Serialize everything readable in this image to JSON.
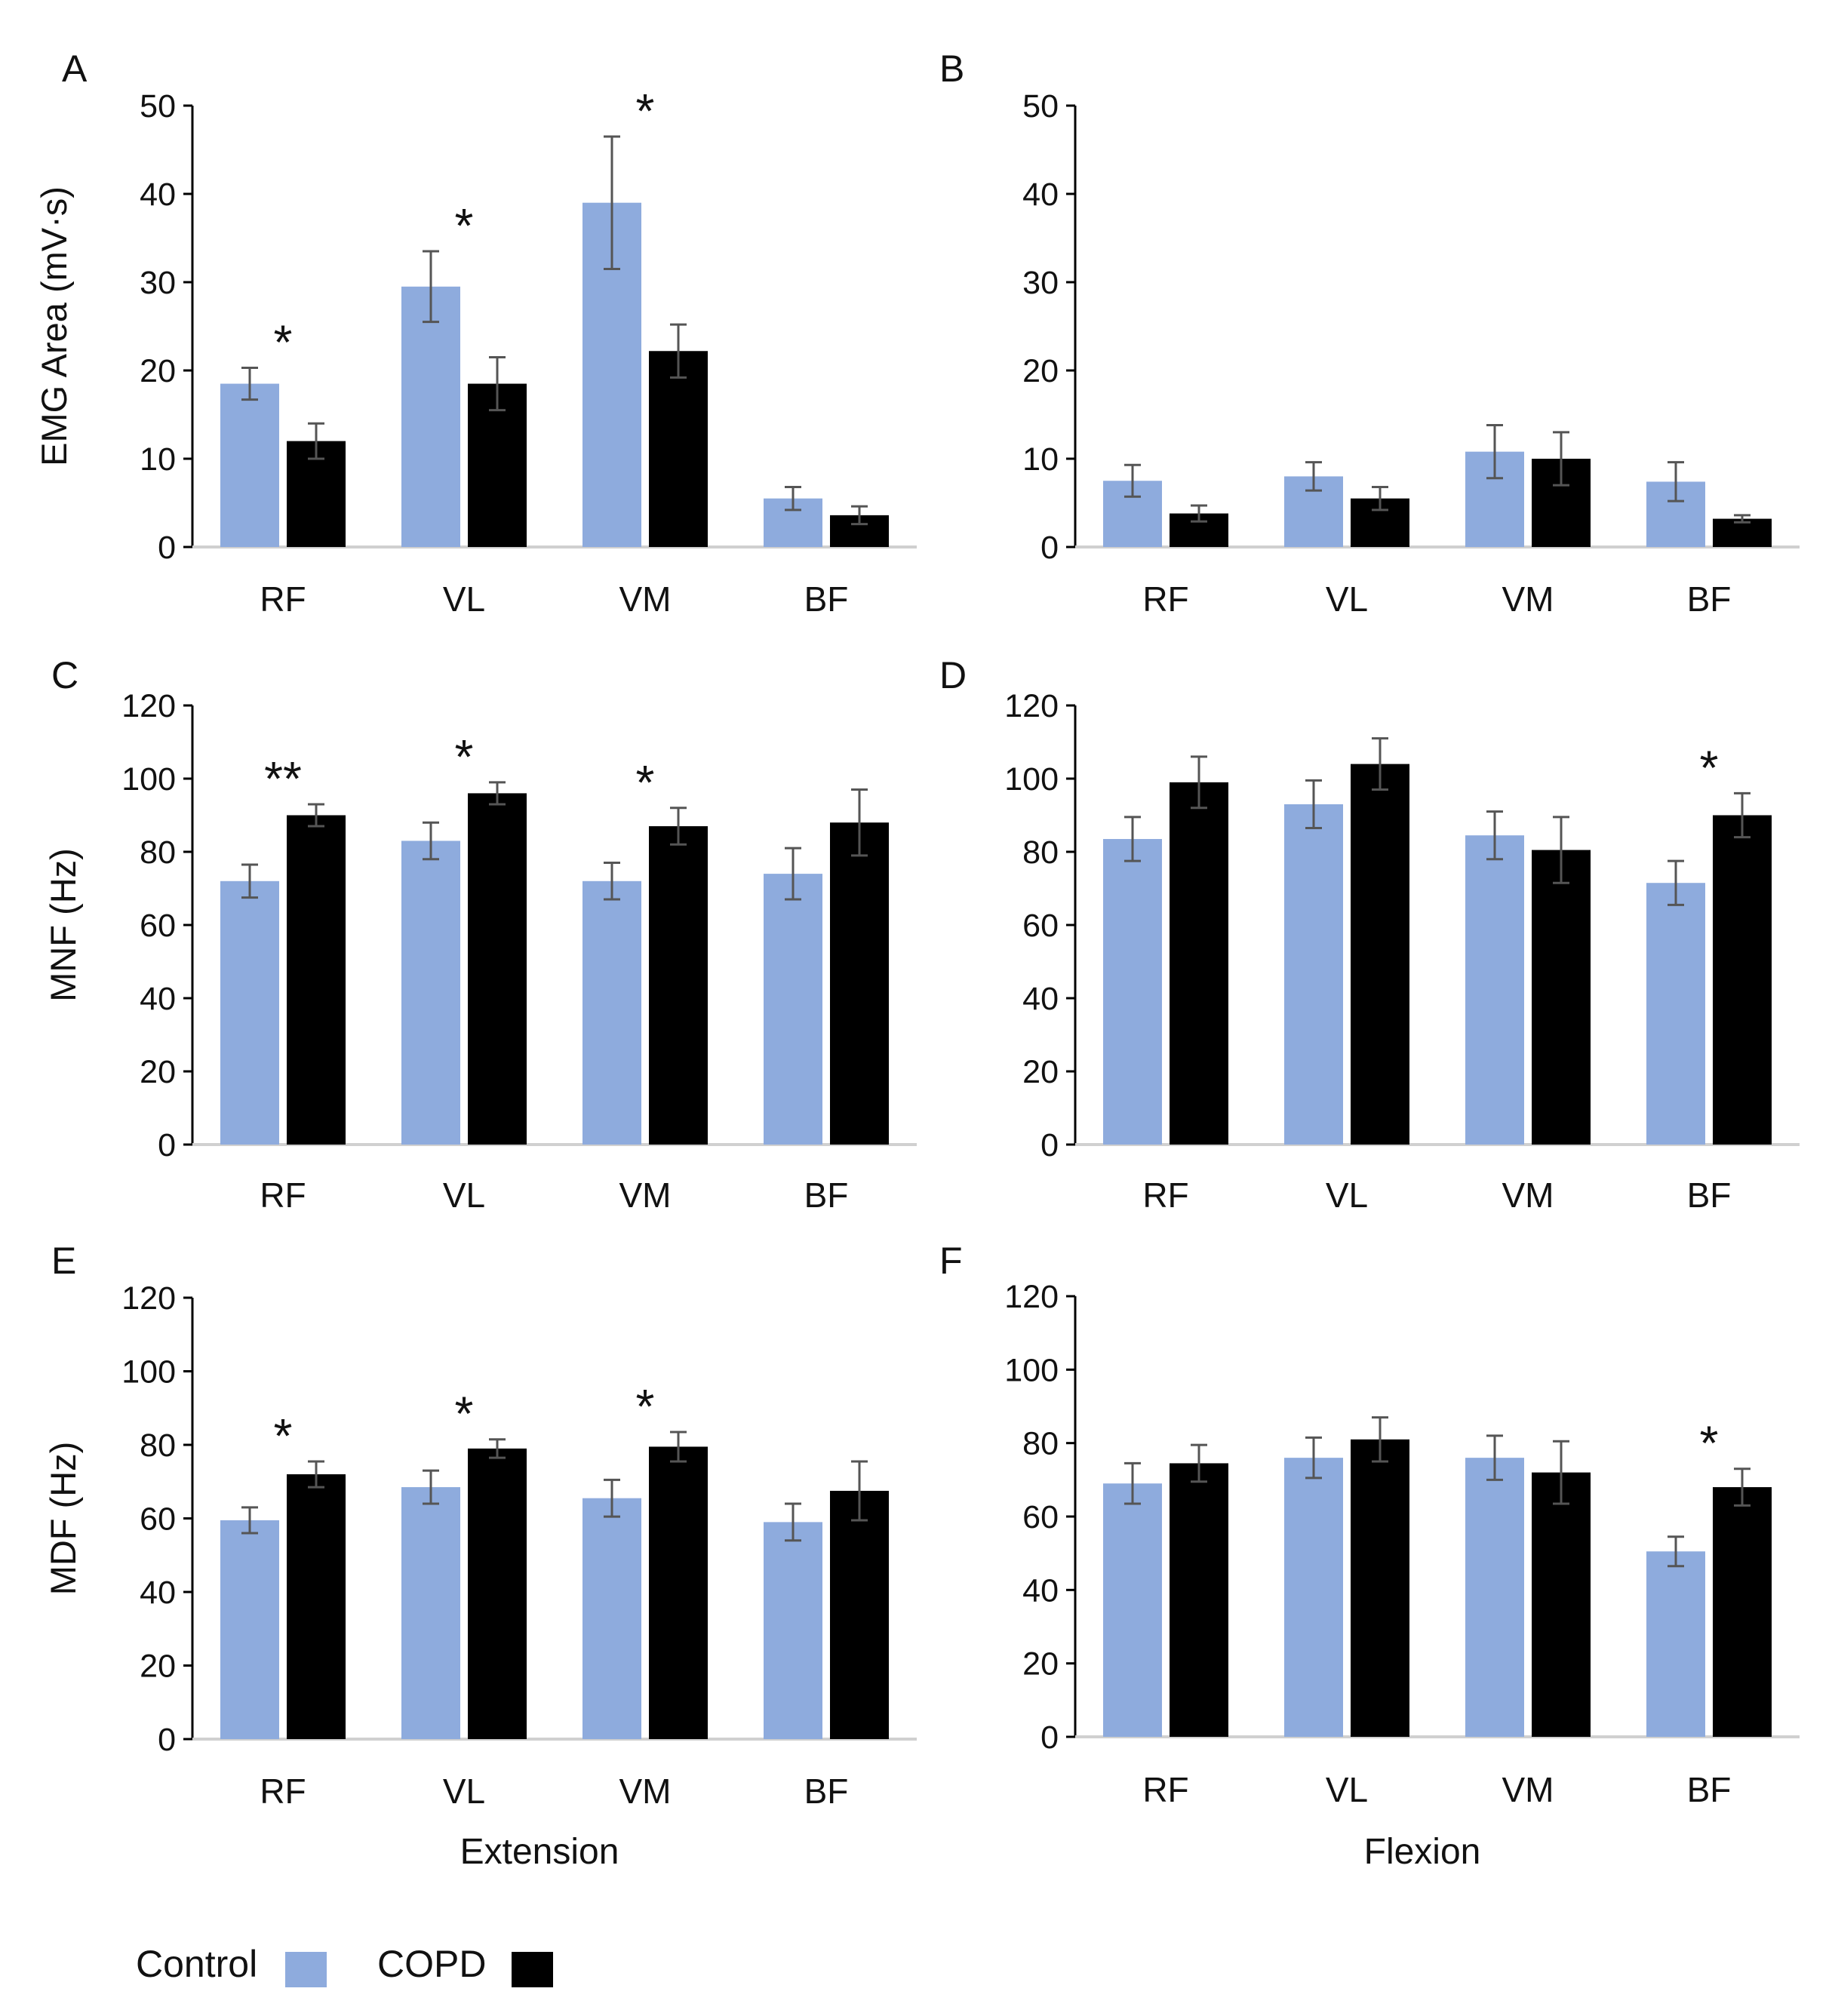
{
  "colors": {
    "control": "#8EABDD",
    "copd": "#000000",
    "error_bar": "#555555",
    "axis": "#000000",
    "baseline": "#d0d0d0"
  },
  "legend": {
    "control_label": "Control",
    "copd_label": "COPD"
  },
  "chart_data": [
    {
      "type": "bar",
      "panel": "A",
      "ylabel": "EMG Area (mV·s)",
      "xlabel": "",
      "categories": [
        "RF",
        "VL",
        "VM",
        "BF"
      ],
      "ylim": [
        0,
        50
      ],
      "yticks": [
        "0",
        "10",
        "20",
        "30",
        "40",
        "50"
      ],
      "series": [
        {
          "name": "Control",
          "values": [
            18.5,
            29.5,
            39,
            5.5
          ],
          "errors": [
            1.8,
            4,
            7.5,
            1.3
          ]
        },
        {
          "name": "COPD",
          "values": [
            12,
            18.5,
            22.2,
            3.6
          ],
          "errors": [
            2,
            3,
            3,
            1
          ]
        }
      ],
      "annotations": [
        "*",
        "*",
        "*",
        ""
      ]
    },
    {
      "type": "bar",
      "panel": "B",
      "ylabel": "",
      "xlabel": "",
      "categories": [
        "RF",
        "VL",
        "VM",
        "BF"
      ],
      "ylim": [
        0,
        50
      ],
      "yticks": [
        "0",
        "10",
        "20",
        "30",
        "40",
        "50"
      ],
      "series": [
        {
          "name": "Control",
          "values": [
            7.5,
            8,
            10.8,
            7.4
          ],
          "errors": [
            1.8,
            1.6,
            3,
            2.2
          ]
        },
        {
          "name": "COPD",
          "values": [
            3.8,
            5.5,
            10,
            3.2
          ],
          "errors": [
            0.9,
            1.3,
            3,
            0.4
          ]
        }
      ],
      "annotations": [
        "",
        "",
        "",
        ""
      ]
    },
    {
      "type": "bar",
      "panel": "C",
      "ylabel": "MNF (Hz)",
      "xlabel": "",
      "categories": [
        "RF",
        "VL",
        "VM",
        "BF"
      ],
      "ylim": [
        0,
        120
      ],
      "yticks": [
        "0",
        "20",
        "40",
        "60",
        "80",
        "100",
        "120"
      ],
      "series": [
        {
          "name": "Control",
          "values": [
            72,
            83,
            72,
            74
          ],
          "errors": [
            4.5,
            5,
            5,
            7
          ]
        },
        {
          "name": "COPD",
          "values": [
            90,
            96,
            87,
            88
          ],
          "errors": [
            3,
            3,
            5,
            9
          ]
        }
      ],
      "annotations": [
        "**",
        "*",
        "*",
        ""
      ]
    },
    {
      "type": "bar",
      "panel": "D",
      "ylabel": "",
      "xlabel": "",
      "categories": [
        "RF",
        "VL",
        "VM",
        "BF"
      ],
      "ylim": [
        0,
        120
      ],
      "yticks": [
        "0",
        "20",
        "40",
        "60",
        "80",
        "100",
        "120"
      ],
      "series": [
        {
          "name": "Control",
          "values": [
            83.5,
            93,
            84.5,
            71.5
          ],
          "errors": [
            6,
            6.5,
            6.5,
            6
          ]
        },
        {
          "name": "COPD",
          "values": [
            99,
            104,
            80.5,
            90
          ],
          "errors": [
            7,
            7,
            9,
            6
          ]
        }
      ],
      "annotations": [
        "",
        "",
        "",
        "*"
      ]
    },
    {
      "type": "bar",
      "panel": "E",
      "ylabel": "MDF (Hz)",
      "xlabel": "Extension",
      "categories": [
        "RF",
        "VL",
        "VM",
        "BF"
      ],
      "ylim": [
        0,
        120
      ],
      "yticks": [
        "0",
        "20",
        "40",
        "60",
        "80",
        "100",
        "120"
      ],
      "series": [
        {
          "name": "Control",
          "values": [
            59.5,
            68.5,
            65.5,
            59
          ],
          "errors": [
            3.5,
            4.5,
            5,
            5
          ]
        },
        {
          "name": "COPD",
          "values": [
            72,
            79,
            79.5,
            67.5
          ],
          "errors": [
            3.5,
            2.5,
            4,
            8
          ]
        }
      ],
      "annotations": [
        "*",
        "*",
        "*",
        ""
      ]
    },
    {
      "type": "bar",
      "panel": "F",
      "ylabel": "",
      "xlabel": "Flexion",
      "categories": [
        "RF",
        "VL",
        "VM",
        "BF"
      ],
      "ylim": [
        0,
        120
      ],
      "yticks": [
        "0",
        "20",
        "40",
        "60",
        "80",
        "100",
        "120"
      ],
      "series": [
        {
          "name": "Control",
          "values": [
            69,
            76,
            76,
            50.5
          ],
          "errors": [
            5.5,
            5.5,
            6,
            4
          ]
        },
        {
          "name": "COPD",
          "values": [
            74.5,
            81,
            72,
            68
          ],
          "errors": [
            5,
            6,
            8.5,
            5
          ]
        }
      ],
      "annotations": [
        "",
        "",
        "",
        "*"
      ]
    }
  ]
}
